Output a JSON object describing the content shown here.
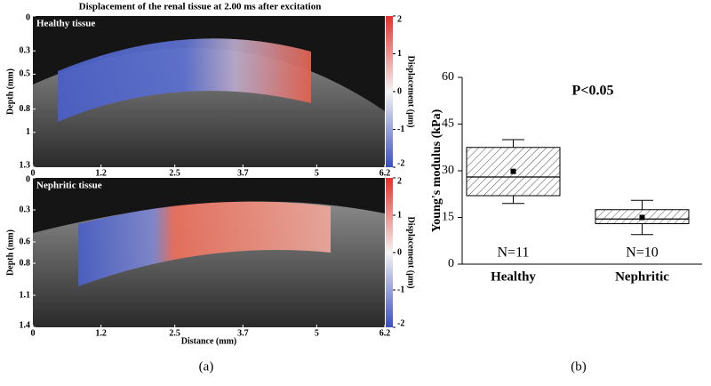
{
  "chart_data": [
    {
      "type": "image",
      "title": "Displacement of the renal tissue at 2.00 ms after excitation",
      "label": "Healthy tissue",
      "ylabel": "Depth (mm)",
      "xlim": [
        0,
        6.2
      ],
      "xticks": [
        0,
        1.2,
        2.5,
        3.7,
        5,
        6.2
      ],
      "ylim": [
        0,
        1.3
      ],
      "yticks": [
        0,
        0.3,
        0.5,
        0.8,
        1,
        1.3
      ],
      "colorbar_label": "Displacement (μm)",
      "clim": [
        -2,
        2
      ],
      "cticks": [
        2,
        1,
        0,
        -1,
        -2
      ]
    },
    {
      "type": "image",
      "label": "Nephritic tissue",
      "ylabel": "Depth (mm)",
      "xlabel": "Distance (mm)",
      "xlim": [
        0,
        6.2
      ],
      "xticks": [
        0,
        1.2,
        2.5,
        3.7,
        5,
        6.2
      ],
      "ylim": [
        0,
        1.4
      ],
      "yticks": [
        0,
        0.3,
        0.6,
        0.8,
        1.1,
        1.4
      ],
      "colorbar_label": "Displacement (μm)",
      "clim": [
        -2,
        2
      ],
      "cticks": [
        2,
        1,
        0,
        -1,
        -2
      ],
      "caption": "(a)"
    },
    {
      "type": "box",
      "ylabel": "Young's modulus (kPa)",
      "annotation": "P<0.05",
      "categories": [
        "Healthy",
        "Nephritic"
      ],
      "counts": [
        "N=11",
        "N=10"
      ],
      "boxes": [
        {
          "whislo": 19.5,
          "q1": 22,
          "med": 28,
          "q3": 37.5,
          "whishi": 40,
          "mean": 29.8
        },
        {
          "whislo": 9.5,
          "q1": 13,
          "med": 14.5,
          "q3": 17.5,
          "whishi": 20.5,
          "mean": 15
        }
      ],
      "ylim": [
        0,
        60
      ],
      "yticks": [
        0,
        15,
        30,
        45,
        60
      ],
      "caption": "(b)"
    }
  ]
}
